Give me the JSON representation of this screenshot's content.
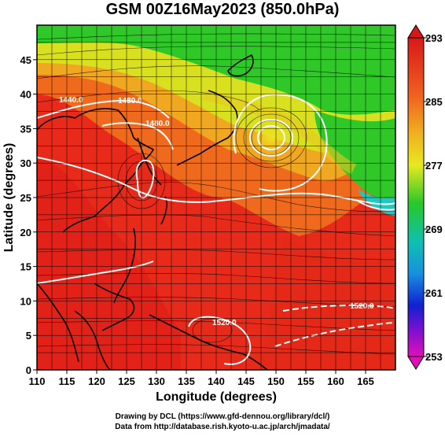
{
  "title": "GSM 00Z16May2023 (850.0hPa)",
  "x_axis": {
    "label": "Longitude (degrees)",
    "ticks": [
      "110",
      "115",
      "120",
      "125",
      "130",
      "135",
      "140",
      "145",
      "150",
      "155",
      "160",
      "165"
    ],
    "range": [
      110,
      170
    ]
  },
  "y_axis": {
    "label": "Latitude  (degrees)",
    "ticks": [
      "0",
      "5",
      "10",
      "15",
      "20",
      "25",
      "30",
      "35",
      "40",
      "45"
    ],
    "range": [
      0,
      50
    ]
  },
  "colorbar": {
    "labels": [
      "293",
      "285",
      "277",
      "269",
      "261",
      "253"
    ],
    "range": [
      253,
      293
    ]
  },
  "contour_labels": [
    "1440.0",
    "1480.0",
    "1480.0",
    "1520.0",
    "1520.0"
  ],
  "colors": {
    "hot": "#e8221a",
    "warm": "#f07a1e",
    "mid": "#e8e01e",
    "green": "#20c020",
    "cyan": "#10c8c8",
    "blue": "#1030e0",
    "magenta": "#e010c0",
    "contour": "#ffffff",
    "coast": "#000000"
  },
  "credits": {
    "line1": "Drawing by DCL (https://www.gfd-dennou.org/library/dcl/)",
    "line2": "Data from http://database.rish.kyoto-u.ac.jp/arch/jmadata/"
  }
}
